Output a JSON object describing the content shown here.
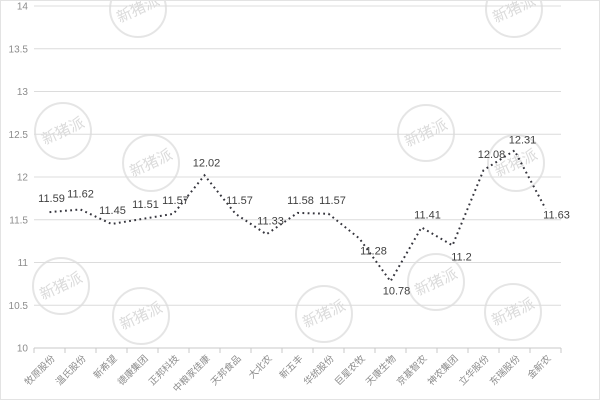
{
  "chart_data": {
    "type": "line",
    "title": "",
    "categories": [
      "牧原股份",
      "温氏股份",
      "新希望",
      "德康集团",
      "正邦科技",
      "中粮家佳康",
      "天邦食品",
      "大北农",
      "新五丰",
      "华统股份",
      "巨星农牧",
      "天康生物",
      "京基智农",
      "神农集团",
      "立华股份",
      "东瑞股份",
      "金新农"
    ],
    "values": [
      11.59,
      11.62,
      11.45,
      11.51,
      11.57,
      12.02,
      11.57,
      11.33,
      11.58,
      11.57,
      11.28,
      10.78,
      11.41,
      11.2,
      12.08,
      12.31,
      11.63
    ],
    "data_labels": [
      "11.59",
      "11.62",
      "11.45",
      "11.51",
      "11.57",
      "12.02",
      "11.57",
      "11.33",
      "11.58",
      "11.57",
      "11.28",
      "10.78",
      "11.41",
      "11.2",
      "12.08",
      "12.31",
      "11.63"
    ],
    "xlabel": "",
    "ylabel": "",
    "ylim": [
      10,
      14
    ],
    "ytick_step": 0.5,
    "ytick_labels": [
      "10",
      "10.5",
      "11",
      "11.5",
      "12",
      "12.5",
      "13",
      "13.5",
      "14"
    ],
    "grid": true,
    "legend_position": "none",
    "line_style": "dotted",
    "colors": {
      "line": "#35353d",
      "data_label": "#404040",
      "axis_tick_label": "#8c8c8c",
      "gridline": "#dcdcdc",
      "axis_line": "#c9c9c9",
      "background": "#ffffff",
      "watermark": "#cfcfcf"
    }
  },
  "watermark": {
    "text": "新猪派"
  }
}
